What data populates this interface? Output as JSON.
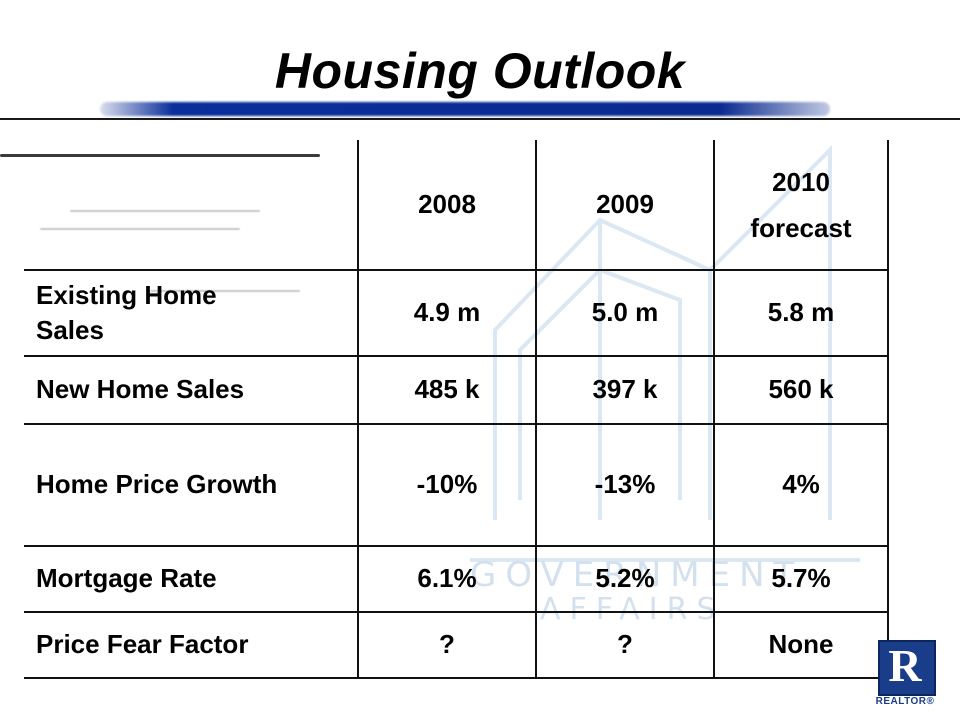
{
  "title": "Housing Outlook",
  "watermark": {
    "line1": "GOVERNMENT",
    "line2": "AFFAIRS"
  },
  "table": {
    "headers": [
      "",
      "2008",
      "2009",
      "2010 forecast"
    ],
    "header_2010_line1": "2010",
    "header_2010_line2": "forecast",
    "rows": [
      {
        "label": "Existing Home Sales",
        "values": [
          "4.9 m",
          "5.0 m",
          "5.8 m"
        ]
      },
      {
        "label": "New Home Sales",
        "values": [
          "485 k",
          "397 k",
          "560 k"
        ]
      },
      {
        "label": "Home Price Growth",
        "values": [
          "-10%",
          "-13%",
          "4%"
        ]
      },
      {
        "label": "Mortgage Rate",
        "values": [
          "6.1%",
          "5.2%",
          "5.7%"
        ]
      },
      {
        "label": "Price Fear Factor",
        "values": [
          "?",
          "?",
          "None"
        ]
      }
    ]
  },
  "logo": {
    "letter": "R",
    "text": "REALTOR®",
    "color": "#1a3d8a"
  },
  "colors": {
    "title_bar": "#0b2e9a",
    "watermark": "#d3e1ef"
  }
}
